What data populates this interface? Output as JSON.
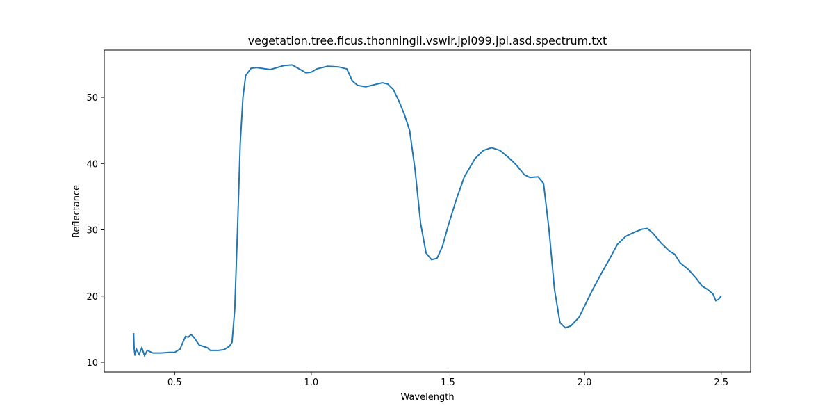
{
  "chart_data": {
    "type": "line",
    "title": "vegetation.tree.ficus.thonningii.vswir.jpl099.jpl.asd.spectrum.txt",
    "x_label": "Wavelength",
    "y_label": "Reflectance",
    "x": [
      0.35,
      0.352,
      0.355,
      0.36,
      0.37,
      0.38,
      0.39,
      0.4,
      0.42,
      0.45,
      0.48,
      0.5,
      0.52,
      0.53,
      0.54,
      0.55,
      0.56,
      0.57,
      0.59,
      0.62,
      0.63,
      0.66,
      0.68,
      0.7,
      0.71,
      0.72,
      0.73,
      0.74,
      0.75,
      0.76,
      0.78,
      0.8,
      0.85,
      0.9,
      0.93,
      0.96,
      0.98,
      1.0,
      1.02,
      1.06,
      1.1,
      1.13,
      1.15,
      1.17,
      1.2,
      1.23,
      1.26,
      1.28,
      1.3,
      1.32,
      1.34,
      1.36,
      1.38,
      1.4,
      1.42,
      1.44,
      1.46,
      1.48,
      1.5,
      1.53,
      1.56,
      1.6,
      1.63,
      1.66,
      1.69,
      1.72,
      1.75,
      1.78,
      1.8,
      1.83,
      1.85,
      1.87,
      1.89,
      1.91,
      1.93,
      1.95,
      1.98,
      2.0,
      2.03,
      2.06,
      2.09,
      2.12,
      2.15,
      2.18,
      2.21,
      2.23,
      2.25,
      2.28,
      2.31,
      2.33,
      2.35,
      2.38,
      2.41,
      2.43,
      2.45,
      2.47,
      2.48,
      2.49,
      2.5
    ],
    "series": [
      {
        "color": "#1f77b4",
        "values": [
          14.4,
          12.0,
          11.0,
          12.0,
          11.2,
          12.2,
          11.0,
          11.8,
          11.4,
          11.4,
          11.5,
          11.5,
          12.0,
          13.0,
          13.9,
          13.8,
          14.2,
          13.8,
          12.6,
          12.2,
          11.8,
          11.8,
          11.9,
          12.4,
          13.0,
          18,
          30,
          43,
          50,
          53.3,
          54.4,
          54.5,
          54.2,
          54.8,
          54.9,
          54.2,
          53.7,
          53.8,
          54.3,
          54.7,
          54.6,
          54.3,
          52.5,
          51.8,
          51.6,
          51.9,
          52.2,
          52.0,
          51.2,
          49.5,
          47.5,
          45.0,
          39,
          31,
          26.5,
          25.5,
          25.7,
          27.5,
          30.5,
          34.5,
          38,
          40.8,
          42.0,
          42.4,
          42.0,
          41.0,
          39.8,
          38.3,
          37.9,
          38.0,
          37.0,
          30,
          21,
          16,
          15.2,
          15.5,
          16.8,
          18.5,
          21.0,
          23.3,
          25.5,
          27.8,
          29.0,
          29.6,
          30.1,
          30.2,
          29.5,
          28.0,
          26.8,
          26.3,
          25.0,
          24.0,
          22.6,
          21.5,
          21.0,
          20.3,
          19.3,
          19.5,
          20.0
        ]
      }
    ],
    "xlim": [
      0.2425,
      2.6075
    ],
    "ylim": [
      8.53,
      57.14
    ],
    "xticks": [
      0.5,
      {
        "value": 1,
        "label": "1.0"
      },
      1.5,
      {
        "value": 2,
        "label": "2.0"
      },
      2.5
    ],
    "yticks": [
      10,
      20,
      30,
      40,
      50
    ]
  }
}
